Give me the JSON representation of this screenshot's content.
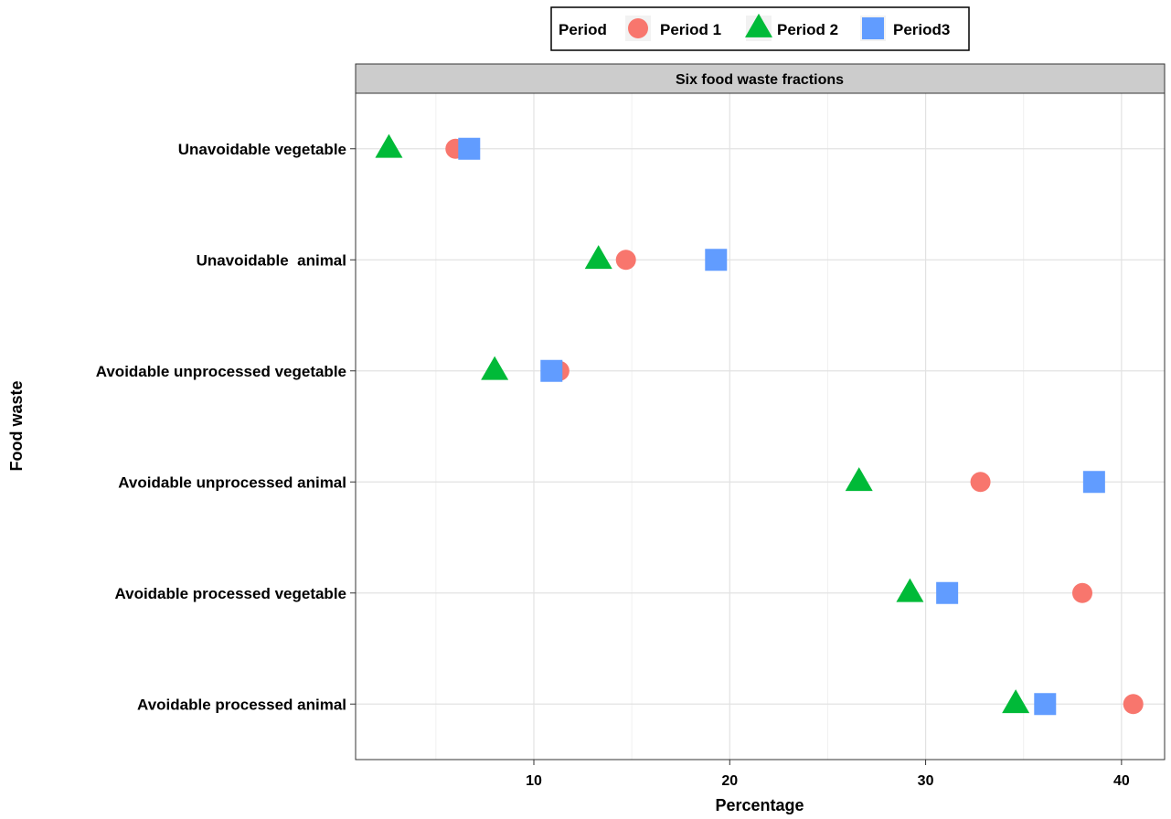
{
  "chart_data": {
    "type": "scatter",
    "facet_title": "Six food waste fractions",
    "xlabel": "Percentage",
    "ylabel": "Food waste",
    "xlim": [
      0.9,
      42.2
    ],
    "xticks": [
      10,
      20,
      30,
      40
    ],
    "grid": true,
    "legend": {
      "placement": "top",
      "title": "Period",
      "entries": [
        "Period 1",
        "Period 2",
        "Period3"
      ]
    },
    "categories": [
      "Unavoidable vegetable",
      "Unavoidable  animal",
      "Avoidable unprocessed vegetable",
      "Avoidable unprocessed animal",
      "Avoidable processed vegetable",
      "Avoidable processed animal"
    ],
    "series": [
      {
        "name": "Period 1",
        "shape": "circle",
        "color": "#F8766D",
        "values": [
          6.0,
          14.7,
          11.3,
          32.8,
          38.0,
          40.6
        ]
      },
      {
        "name": "Period 2",
        "shape": "triangle",
        "color": "#00BA38",
        "values": [
          2.6,
          13.3,
          8.0,
          26.6,
          29.2,
          34.6
        ]
      },
      {
        "name": "Period3",
        "shape": "square",
        "color": "#619CFF",
        "values": [
          6.7,
          19.3,
          10.9,
          38.6,
          31.1,
          36.1
        ]
      }
    ]
  }
}
